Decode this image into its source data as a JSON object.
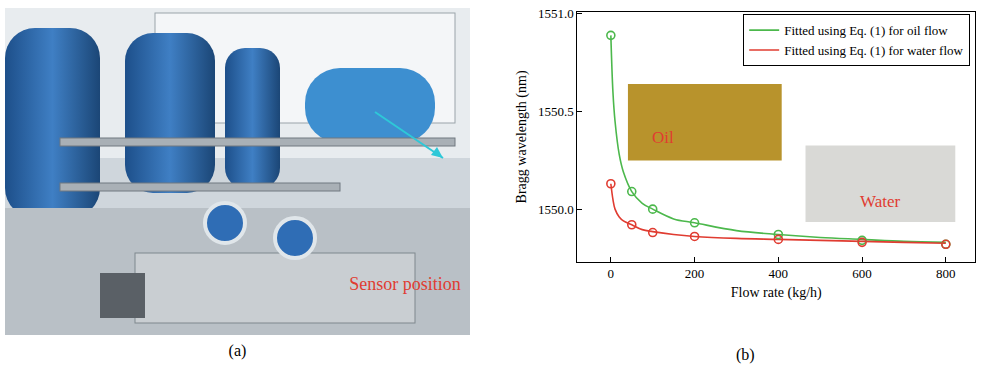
{
  "chart_data": {
    "type": "scatter",
    "panel_label": "(b)",
    "x_label": "Flow rate (kg/h)",
    "y_label": "Bragg wavelength (nm)",
    "xlim": [
      -80,
      870
    ],
    "xticks": [
      0,
      200,
      400,
      600,
      800
    ],
    "ylim": [
      1549.73,
      1551.01
    ],
    "yticks": [
      {
        "value": 1550.0,
        "label": "1550.0"
      },
      1550.5,
      {
        "value": 1551.0,
        "label": "1551.0"
      }
    ],
    "legend": "upper right",
    "grid": false,
    "series": [
      {
        "name": "Fitted using Eq. (1) for oil flow",
        "type": "line",
        "line_style": "solid",
        "color": "#4cb84c",
        "x": [
          0,
          5,
          10,
          20,
          30,
          50,
          75,
          100,
          150,
          200,
          300,
          400,
          500,
          600,
          700,
          800
        ],
        "values": [
          1550.89,
          1550.6,
          1550.45,
          1550.28,
          1550.19,
          1550.09,
          1550.03,
          1550.0,
          1549.95,
          1549.93,
          1549.89,
          1549.87,
          1549.855,
          1549.845,
          1549.835,
          1549.83
        ]
      },
      {
        "name": "Fitted using Eq. (1) for water flow",
        "type": "line",
        "line_style": "solid",
        "color": "#e03c31",
        "x": [
          0,
          5,
          10,
          20,
          30,
          50,
          75,
          100,
          150,
          200,
          300,
          400,
          500,
          600,
          700,
          800
        ],
        "values": [
          1550.13,
          1550.05,
          1550.0,
          1549.96,
          1549.94,
          1549.92,
          1549.895,
          1549.885,
          1549.87,
          1549.86,
          1549.85,
          1549.845,
          1549.84,
          1549.835,
          1549.83,
          1549.825
        ]
      },
      {
        "type": "scatter",
        "marker": "circle-open",
        "color": "#4cb84c",
        "x": [
          0,
          50,
          100,
          200,
          400,
          600,
          800
        ],
        "values": [
          1550.89,
          1550.09,
          1550.0,
          1549.93,
          1549.87,
          1549.84,
          1549.82
        ]
      },
      {
        "type": "scatter",
        "marker": "circle-open",
        "color": "#e03c31",
        "x": [
          0,
          50,
          100,
          200,
          400,
          600,
          800
        ],
        "values": [
          1550.13,
          1549.92,
          1549.88,
          1549.86,
          1549.845,
          1549.83,
          1549.82
        ]
      }
    ],
    "annotations": [
      {
        "text": "Oil",
        "color": "#e03c31"
      },
      {
        "text": "Water",
        "color": "#e03c31"
      }
    ]
  },
  "photo": {
    "panel_label": "(a)",
    "annotation": "Sensor position",
    "annotation_color": "#e03c31",
    "arrow_color": "#2ec8d8"
  }
}
